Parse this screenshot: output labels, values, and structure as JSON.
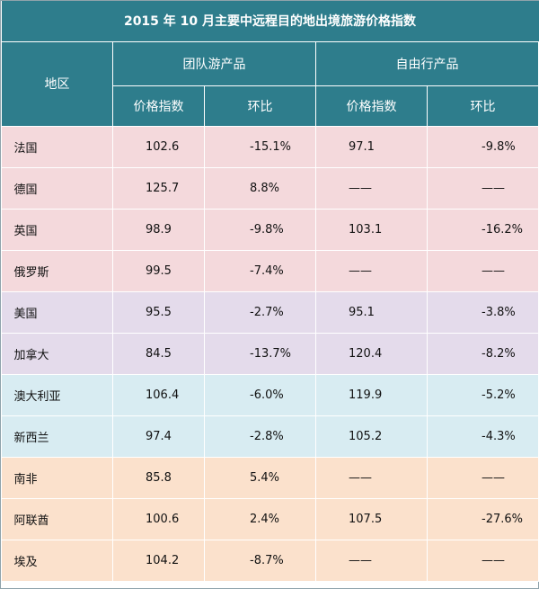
{
  "title": "2015 年 10 月主要中远程目的地出境旅游价格指数",
  "headers": {
    "region": "地区",
    "group": "团队游产品",
    "free": "自由行产品",
    "price_index": "价格指数",
    "mom": "环比"
  },
  "rows": [
    {
      "region": "法国",
      "group_index": "102.6",
      "group_mom": "-15.1%",
      "free_index": "97.1",
      "free_mom": "-9.8%"
    },
    {
      "region": "德国",
      "group_index": "125.7",
      "group_mom": "8.8%",
      "free_index": "——",
      "free_mom": "——"
    },
    {
      "region": "英国",
      "group_index": "98.9",
      "group_mom": "-9.8%",
      "free_index": "103.1",
      "free_mom": "-16.2%"
    },
    {
      "region": "俄罗斯",
      "group_index": "99.5",
      "group_mom": "-7.4%",
      "free_index": "——",
      "free_mom": "——"
    },
    {
      "region": "美国",
      "group_index": "95.5",
      "group_mom": "-2.7%",
      "free_index": "95.1",
      "free_mom": "-3.8%"
    },
    {
      "region": "加拿大",
      "group_index": "84.5",
      "group_mom": "-13.7%",
      "free_index": "120.4",
      "free_mom": "-8.2%"
    },
    {
      "region": "澳大利亚",
      "group_index": "106.4",
      "group_mom": "-6.0%",
      "free_index": "119.9",
      "free_mom": "-5.2%"
    },
    {
      "region": "新西兰",
      "group_index": "97.4",
      "group_mom": "-2.8%",
      "free_index": "105.2",
      "free_mom": "-4.3%"
    },
    {
      "region": "南非",
      "group_index": "85.8",
      "group_mom": "5.4%",
      "free_index": "——",
      "free_mom": "——"
    },
    {
      "region": "阿联酋",
      "group_index": "100.6",
      "group_mom": "2.4%",
      "free_index": "107.5",
      "free_mom": "-27.6%"
    },
    {
      "region": "埃及",
      "group_index": "104.2",
      "group_mom": "-8.7%",
      "free_index": "——",
      "free_mom": "——"
    }
  ],
  "colors": {
    "header": "#2e7d8c",
    "europe": "#f4d9dc",
    "america": "#e4dbeb",
    "oceania": "#d8ecf2",
    "africa_middle_east": "#fbe1cc"
  }
}
